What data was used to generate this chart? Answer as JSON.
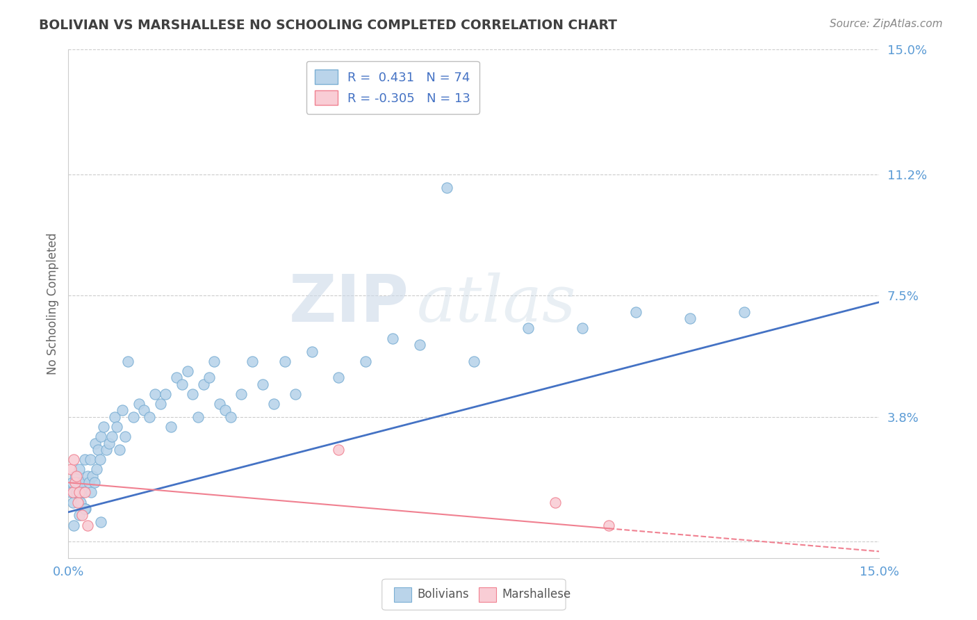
{
  "title": "BOLIVIAN VS MARSHALLESE NO SCHOOLING COMPLETED CORRELATION CHART",
  "source": "Source: ZipAtlas.com",
  "ylabel": "No Schooling Completed",
  "xlim": [
    0.0,
    15.0
  ],
  "ylim": [
    -0.5,
    15.0
  ],
  "ytick_vals": [
    0.0,
    3.8,
    7.5,
    11.2,
    15.0
  ],
  "ytick_labels": [
    "",
    "3.8%",
    "7.5%",
    "11.2%",
    "15.0%"
  ],
  "watermark_zip": "ZIP",
  "watermark_atlas": "atlas",
  "bolivians_R": 0.431,
  "bolivians_N": 74,
  "marshallese_R": -0.305,
  "marshallese_N": 13,
  "bolivian_fill_color": "#bad4ea",
  "bolivian_edge_color": "#7bafd4",
  "marshallese_fill_color": "#f9cdd5",
  "marshallese_edge_color": "#f08090",
  "bolivian_line_color": "#4472c4",
  "marshallese_line_color": "#f08090",
  "background_color": "#ffffff",
  "grid_color": "#cccccc",
  "title_color": "#404040",
  "tick_label_color": "#5b9bd5",
  "ylabel_color": "#666666",
  "source_color": "#888888",
  "legend_text_color": "#333333",
  "legend_r_color": "#4472c4",
  "bottom_legend_text_color": "#555555",
  "bolivian_x": [
    0.05,
    0.07,
    0.09,
    0.12,
    0.15,
    0.18,
    0.2,
    0.22,
    0.25,
    0.28,
    0.3,
    0.32,
    0.35,
    0.38,
    0.4,
    0.42,
    0.45,
    0.48,
    0.5,
    0.52,
    0.55,
    0.58,
    0.6,
    0.65,
    0.7,
    0.75,
    0.8,
    0.85,
    0.9,
    0.95,
    1.0,
    1.05,
    1.1,
    1.2,
    1.3,
    1.4,
    1.5,
    1.6,
    1.7,
    1.8,
    1.9,
    2.0,
    2.1,
    2.2,
    2.3,
    2.4,
    2.5,
    2.6,
    2.7,
    2.8,
    2.9,
    3.0,
    3.2,
    3.4,
    3.6,
    3.8,
    4.0,
    4.2,
    4.5,
    5.0,
    5.5,
    6.0,
    6.5,
    7.0,
    7.5,
    8.5,
    9.5,
    10.5,
    11.5,
    12.5,
    0.1,
    0.2,
    0.3,
    0.6
  ],
  "bolivian_y": [
    1.5,
    1.8,
    1.2,
    2.0,
    1.5,
    1.8,
    2.2,
    1.2,
    1.8,
    1.5,
    2.5,
    1.0,
    2.0,
    1.8,
    2.5,
    1.5,
    2.0,
    1.8,
    3.0,
    2.2,
    2.8,
    2.5,
    3.2,
    3.5,
    2.8,
    3.0,
    3.2,
    3.8,
    3.5,
    2.8,
    4.0,
    3.2,
    5.5,
    3.8,
    4.2,
    4.0,
    3.8,
    4.5,
    4.2,
    4.5,
    3.5,
    5.0,
    4.8,
    5.2,
    4.5,
    3.8,
    4.8,
    5.0,
    5.5,
    4.2,
    4.0,
    3.8,
    4.5,
    5.5,
    4.8,
    4.2,
    5.5,
    4.5,
    5.8,
    5.0,
    5.5,
    6.2,
    6.0,
    10.8,
    5.5,
    6.5,
    6.5,
    7.0,
    6.8,
    7.0,
    0.5,
    0.8,
    1.0,
    0.6
  ],
  "marshallese_x": [
    0.05,
    0.08,
    0.1,
    0.12,
    0.15,
    0.18,
    0.2,
    0.25,
    0.3,
    0.35,
    5.0,
    9.0,
    10.0
  ],
  "marshallese_y": [
    2.2,
    1.5,
    2.5,
    1.8,
    2.0,
    1.2,
    1.5,
    0.8,
    1.5,
    0.5,
    2.8,
    1.2,
    0.5
  ],
  "blue_line_x0": 0.0,
  "blue_line_y0": 0.9,
  "blue_line_x1": 15.0,
  "blue_line_y1": 7.3,
  "pink_line_x0": 0.0,
  "pink_line_y0": 1.8,
  "pink_line_x1": 15.0,
  "pink_line_y1": -0.3
}
